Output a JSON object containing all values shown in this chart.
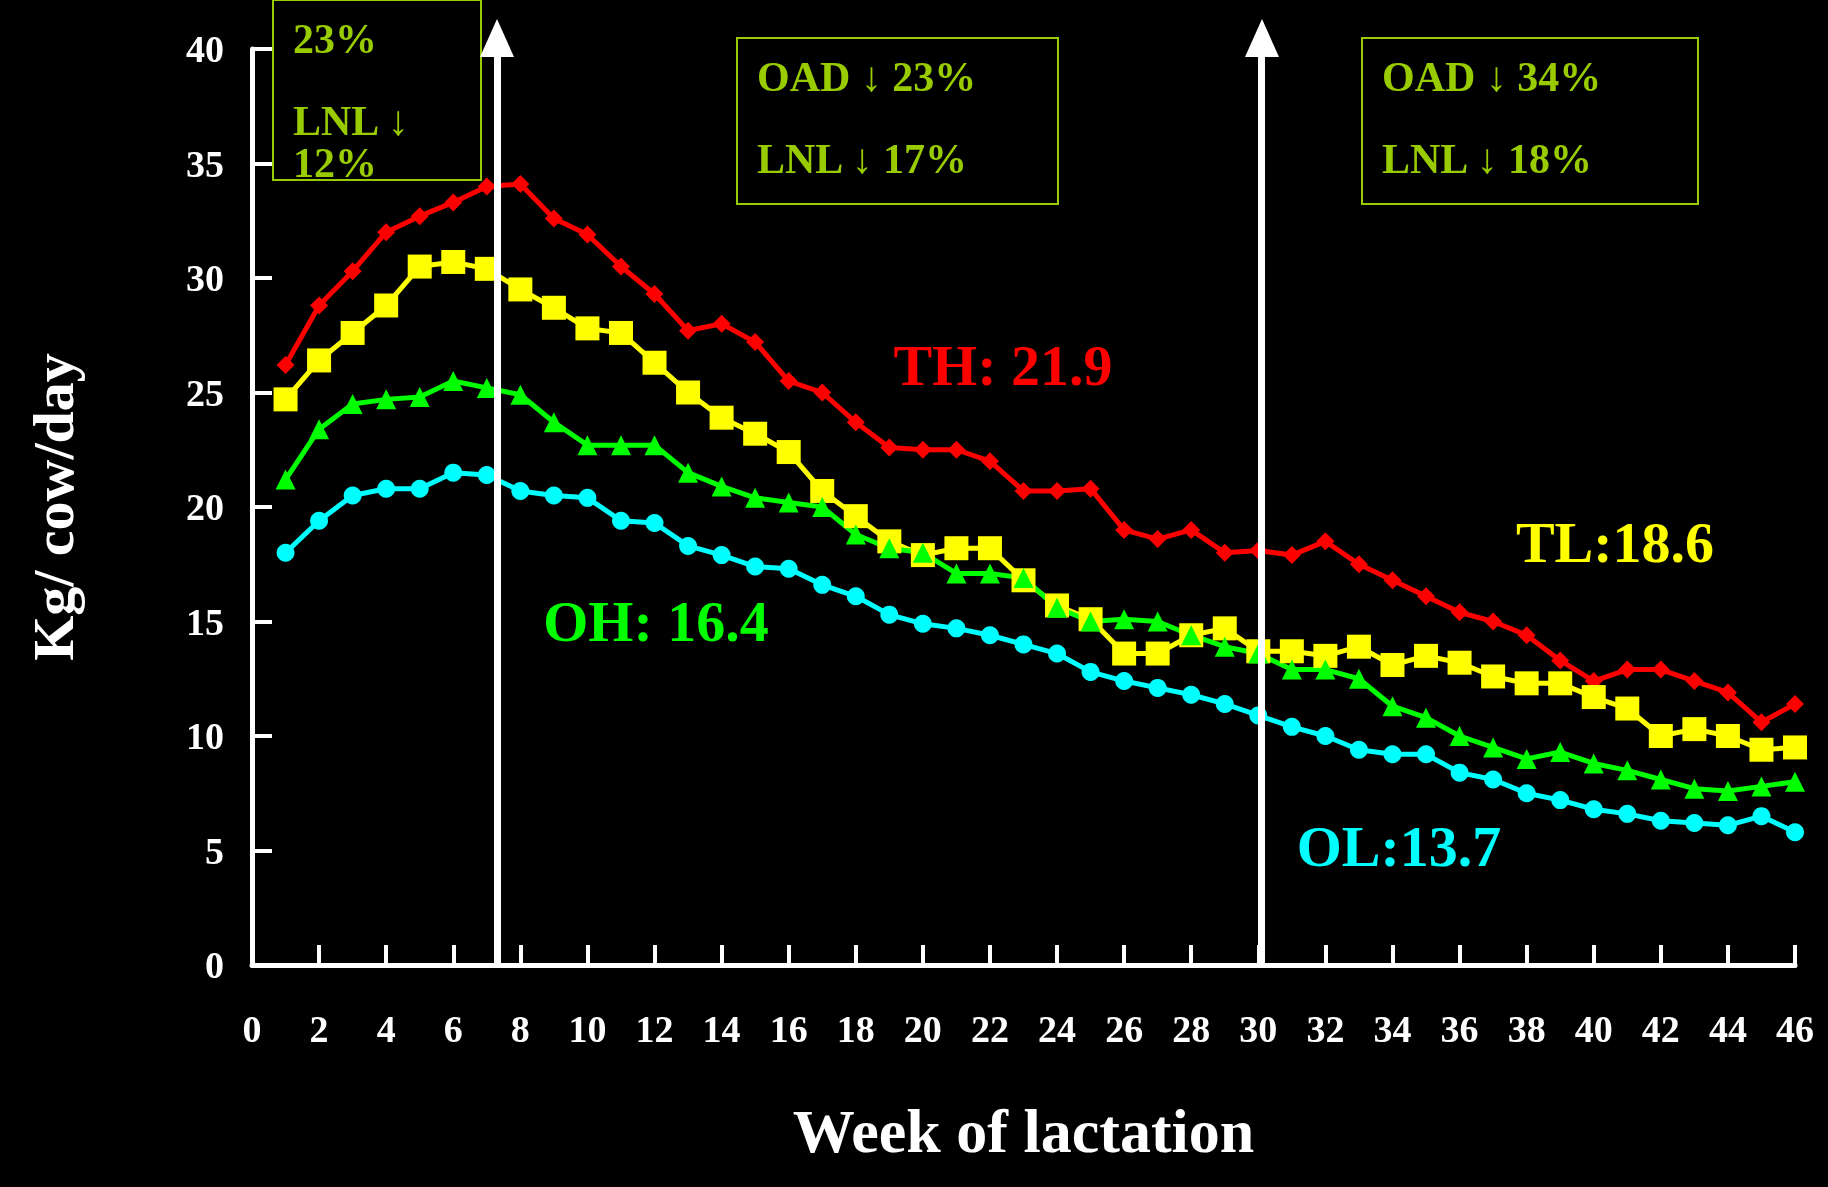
{
  "chart_data": {
    "type": "line",
    "xlabel": "Week of lactation",
    "ylabel": "Kg/ cow/day",
    "x": [
      1,
      2,
      3,
      4,
      5,
      6,
      7,
      8,
      9,
      10,
      11,
      12,
      13,
      14,
      15,
      16,
      17,
      18,
      19,
      20,
      21,
      22,
      23,
      24,
      25,
      26,
      27,
      28,
      29,
      30,
      31,
      32,
      33,
      34,
      35,
      36,
      37,
      38,
      39,
      40,
      41,
      42,
      43,
      44,
      45,
      46
    ],
    "series": [
      {
        "name": "TH: 21.9",
        "color": "#ff0000",
        "marker": "diamond",
        "values": [
          26.2,
          28.8,
          30.3,
          32,
          32.7,
          33.3,
          34,
          34.1,
          32.6,
          31.9,
          30.5,
          29.3,
          27.7,
          28,
          27.2,
          25.5,
          25,
          23.7,
          22.6,
          22.5,
          22.5,
          22,
          20.7,
          20.7,
          20.8,
          19,
          18.6,
          19,
          18,
          18.1,
          17.9,
          18.5,
          17.5,
          16.8,
          16.1,
          15.4,
          15,
          14.4,
          13.3,
          12.4,
          12.9,
          12.9,
          12.4,
          11.9,
          10.6,
          11.4
        ]
      },
      {
        "name": "TL:18.6",
        "color": "#ffff00",
        "marker": "square",
        "values": [
          24.7,
          26.4,
          27.6,
          28.8,
          30.5,
          30.7,
          30.4,
          29.5,
          28.7,
          27.8,
          27.6,
          26.3,
          25,
          23.9,
          23.2,
          22.4,
          20.7,
          19.6,
          18.5,
          17.9,
          18.2,
          18.2,
          16.8,
          15.7,
          15.1,
          13.6,
          13.6,
          14.4,
          14.7,
          13.7,
          13.7,
          13.5,
          13.9,
          13.1,
          13.5,
          13.2,
          12.6,
          12.3,
          12.3,
          11.7,
          11.2,
          10,
          10.3,
          10,
          9.4,
          9.5
        ]
      },
      {
        "name": "OH: 16.4",
        "color": "#00ff00",
        "marker": "triangle",
        "values": [
          21.2,
          23.4,
          24.5,
          24.7,
          24.8,
          25.5,
          25.2,
          24.9,
          23.7,
          22.7,
          22.7,
          22.7,
          21.5,
          20.9,
          20.4,
          20.2,
          20,
          18.8,
          18.2,
          18,
          17.1,
          17.1,
          16.9,
          15.6,
          15,
          15.1,
          15,
          14.4,
          13.9,
          13.6,
          12.9,
          12.9,
          12.5,
          11.3,
          10.8,
          10,
          9.5,
          9,
          9.3,
          8.8,
          8.5,
          8.1,
          7.7,
          7.6,
          7.8,
          8
        ]
      },
      {
        "name": "OL:13.7",
        "color": "#00ffff",
        "marker": "circle",
        "values": [
          18,
          19.4,
          20.5,
          20.8,
          20.8,
          21.5,
          21.4,
          20.7,
          20.5,
          20.4,
          19.4,
          19.3,
          18.3,
          17.9,
          17.4,
          17.3,
          16.6,
          16.1,
          15.3,
          14.9,
          14.7,
          14.4,
          14,
          13.6,
          12.8,
          12.4,
          12.1,
          11.8,
          11.4,
          10.9,
          10.4,
          10,
          9.4,
          9.2,
          9.2,
          8.4,
          8.1,
          7.5,
          7.2,
          6.8,
          6.6,
          6.3,
          6.2,
          6.1,
          6.5,
          5.8
        ]
      }
    ],
    "xlim": [
      0,
      46
    ],
    "xticks": [
      0,
      2,
      4,
      6,
      8,
      10,
      12,
      14,
      16,
      18,
      20,
      22,
      24,
      26,
      28,
      30,
      32,
      34,
      36,
      38,
      40,
      42,
      44,
      46
    ],
    "ylim": [
      0,
      40
    ],
    "yticks": [
      0,
      5,
      10,
      15,
      20,
      25,
      30,
      35,
      40
    ],
    "ref_lines": [
      {
        "axis": "x",
        "value": 7.3,
        "color": "#ffffff"
      },
      {
        "axis": "x",
        "value": 30.1,
        "color": "#ffffff"
      }
    ],
    "annotations": [
      "23%",
      "LNL ↓ 12%",
      "OAD ↓ 23%",
      "LNL ↓ 17%",
      "OAD ↓ 34%",
      "LNL ↓ 18%"
    ],
    "grid": false,
    "legend": false,
    "line_style": "solid"
  }
}
